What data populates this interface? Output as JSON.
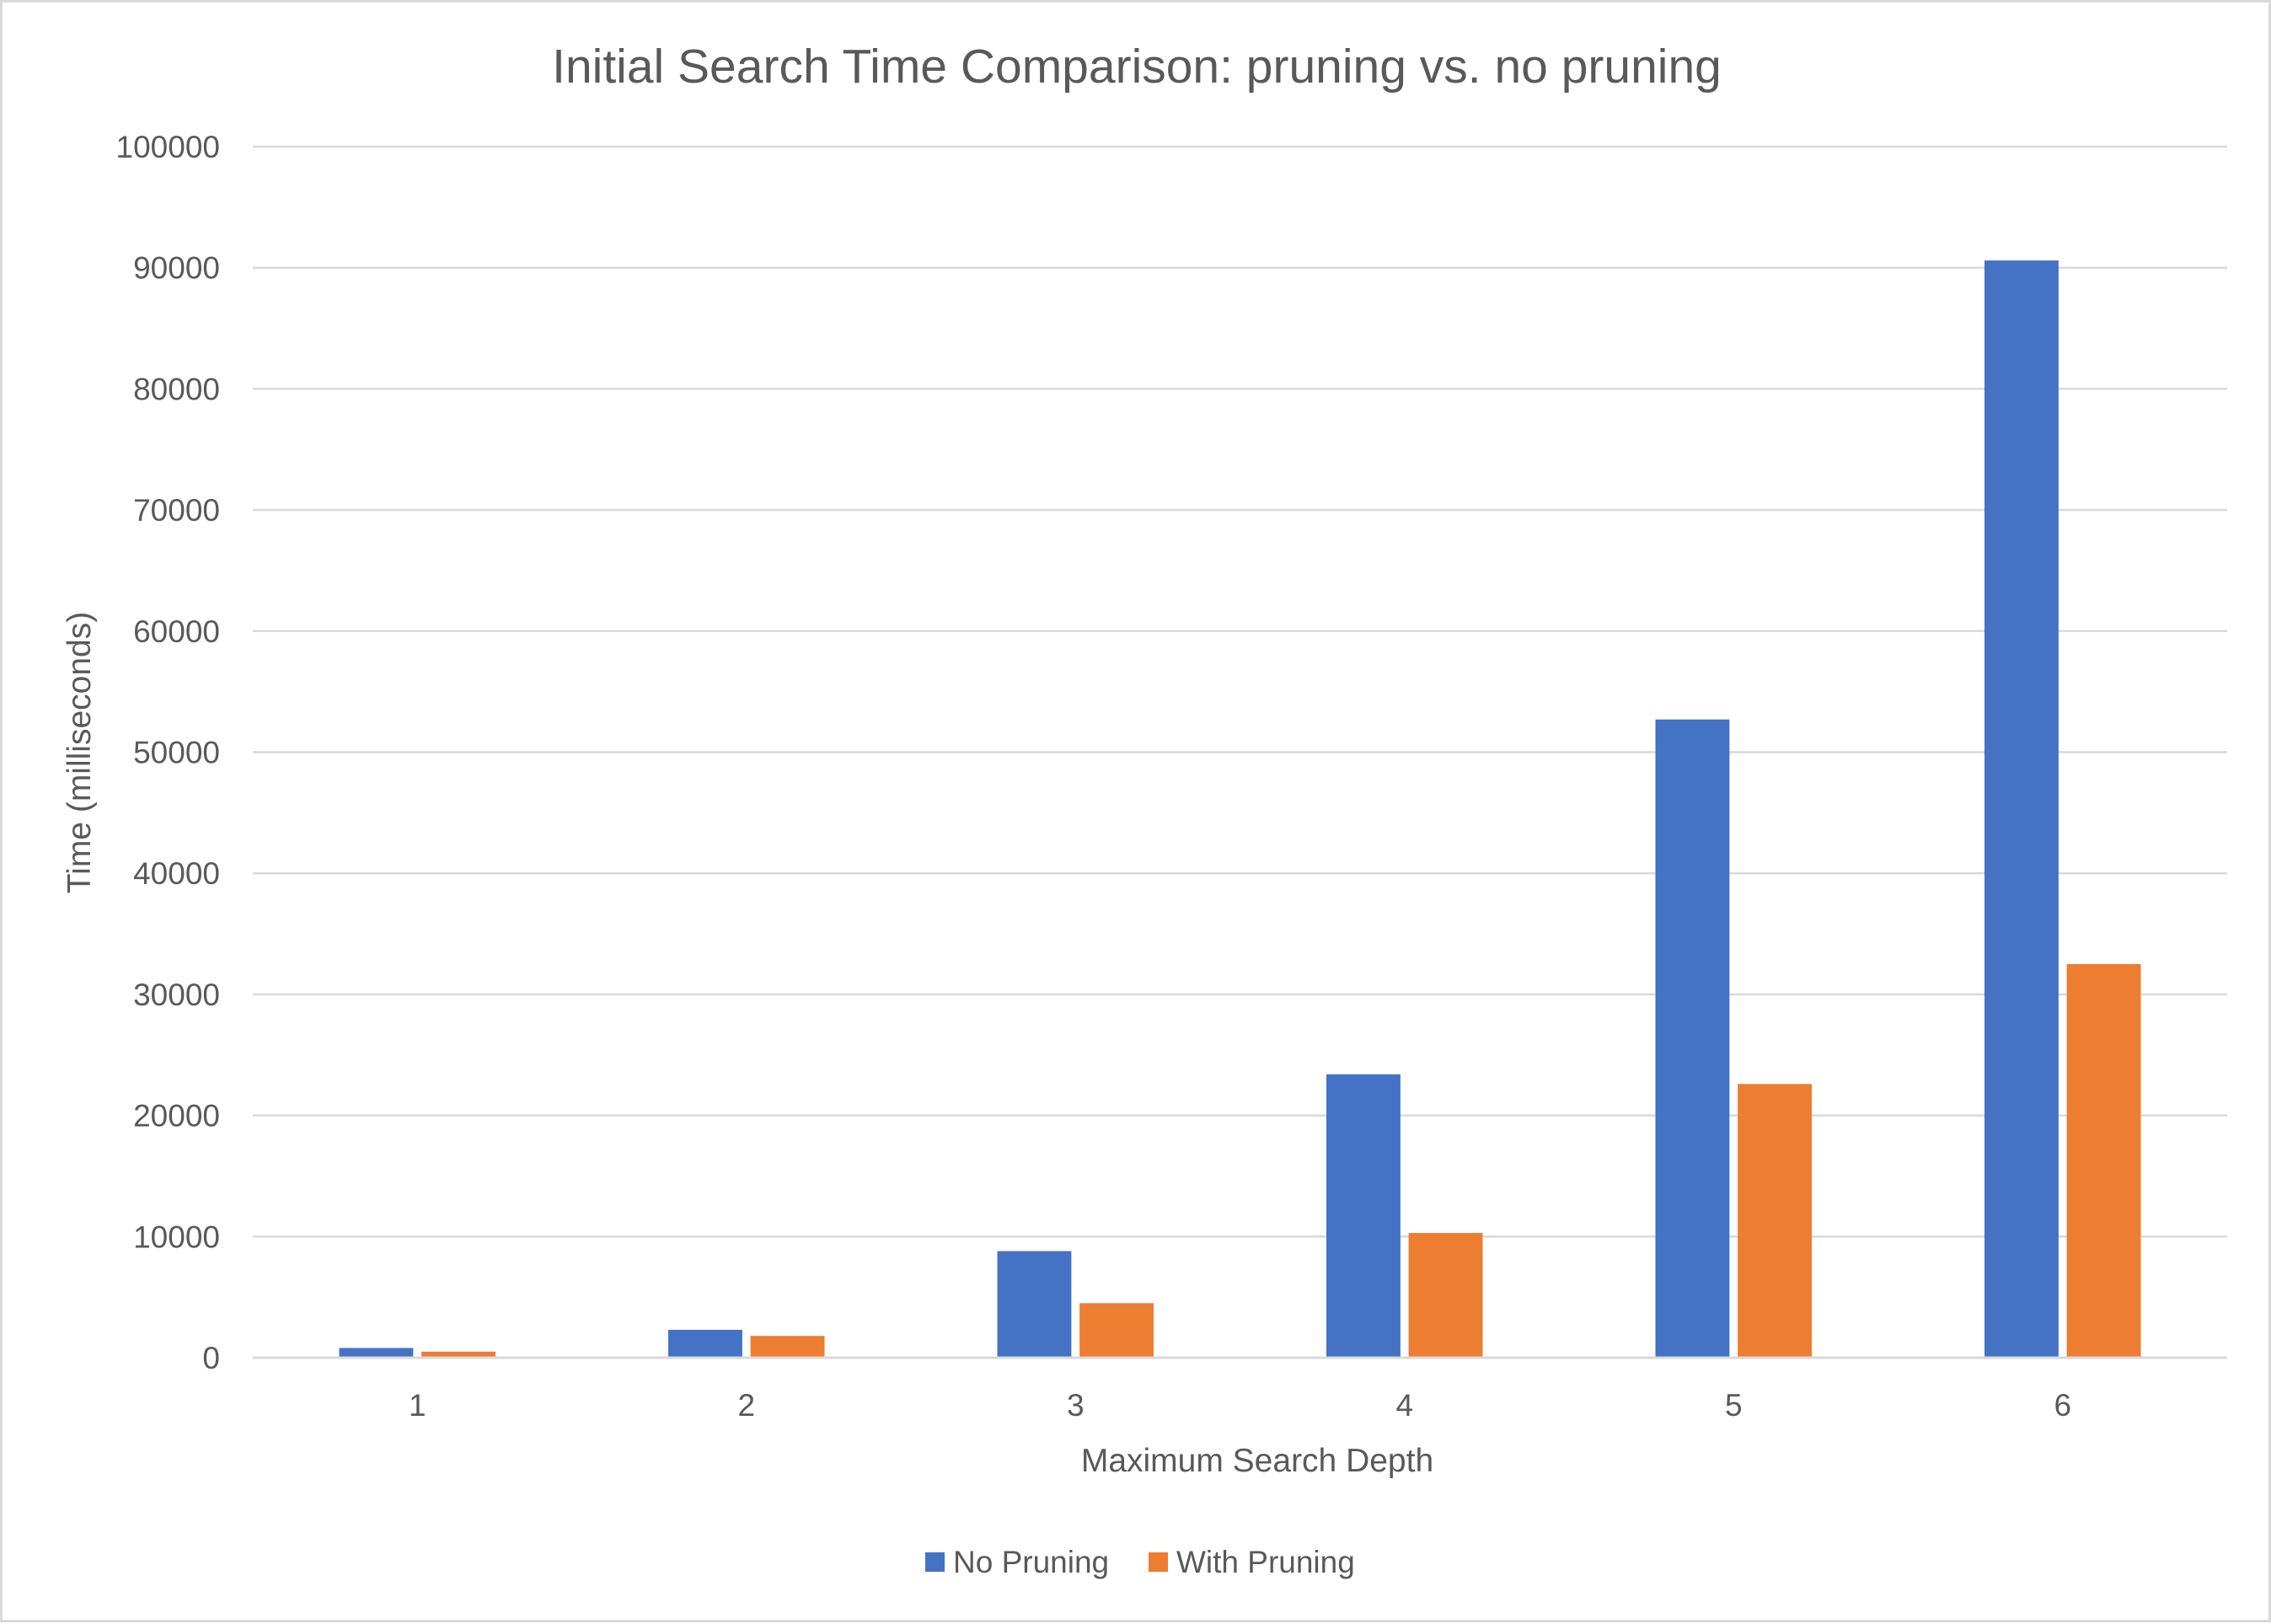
{
  "chart_data": {
    "type": "bar",
    "title": "Initial Search Time Comparison: pruning vs. no pruning",
    "xlabel": "Maximum Search Depth",
    "ylabel": "Time (milliseconds)",
    "categories": [
      "1",
      "2",
      "3",
      "4",
      "5",
      "6"
    ],
    "series": [
      {
        "name": "No Pruning",
        "color": "#4472c4",
        "values": [
          800,
          2300,
          8800,
          23400,
          52700,
          90600
        ]
      },
      {
        "name": "With Pruning",
        "color": "#ed7d31",
        "values": [
          500,
          1800,
          4500,
          10300,
          22600,
          32500
        ]
      }
    ],
    "ylim": [
      0,
      100000
    ],
    "yticks": [
      "0",
      "10000",
      "20000",
      "30000",
      "40000",
      "50000",
      "60000",
      "70000",
      "80000",
      "90000",
      "100000"
    ],
    "grid": true,
    "legend_position": "bottom"
  }
}
